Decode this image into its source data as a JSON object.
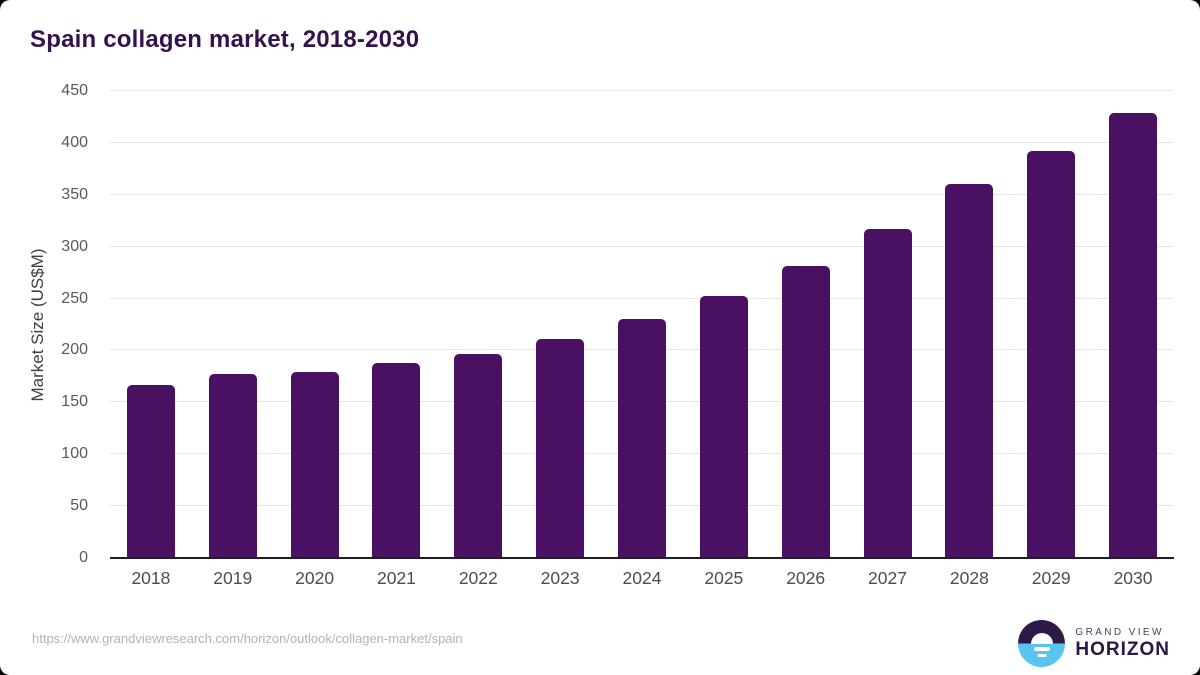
{
  "header": {
    "title": "Spain collagen market, 2018-2030"
  },
  "chart_data": {
    "type": "bar",
    "title": "Spain collagen market, 2018-2030",
    "categories": [
      "2018",
      "2019",
      "2020",
      "2021",
      "2022",
      "2023",
      "2024",
      "2025",
      "2026",
      "2027",
      "2028",
      "2029",
      "2030"
    ],
    "values": [
      167,
      177,
      179,
      188,
      197,
      211,
      230,
      252,
      281,
      317,
      360,
      392,
      429
    ],
    "xlabel": "",
    "ylabel": "Market Size (US$M)",
    "ylim": [
      0,
      450
    ],
    "ytick_step": 50,
    "grid": "horizontal-only",
    "legend": "none",
    "bar_color": "#4a1162"
  },
  "colors": {
    "title": "#33124e",
    "bar": "#4a1162",
    "gridline": "#e6e6e6",
    "axis_line": "#1f1f1f",
    "tick_text": "#595959",
    "category_text": "#4d4d4d",
    "footer_text": "#b3b3b3",
    "logo_purple": "#2e1a47",
    "logo_blue": "#58c5f1"
  },
  "footer": {
    "source_url": "https://www.grandviewresearch.com/horizon/outlook/collagen-market/spain",
    "logo": {
      "line1": "GRAND VIEW",
      "line2": "HORIZON"
    }
  }
}
